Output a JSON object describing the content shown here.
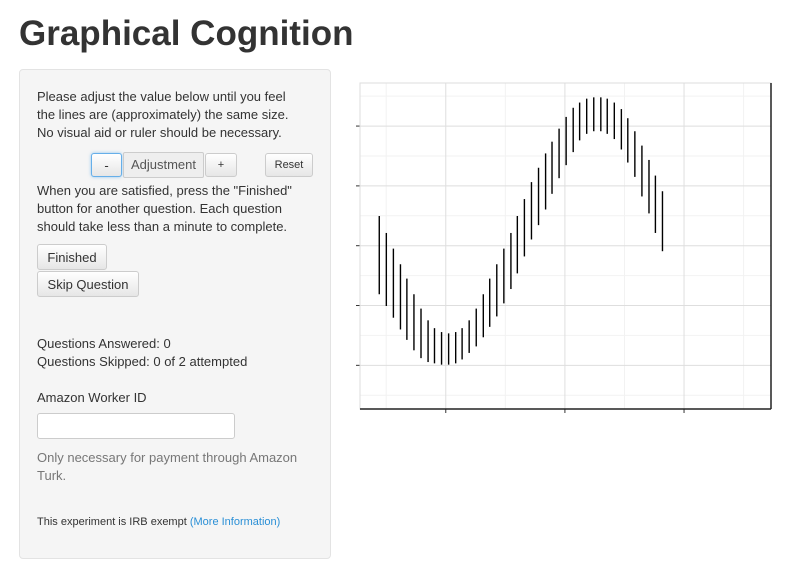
{
  "page": {
    "title": "Graphical Cognition"
  },
  "panel": {
    "instructions": "Please adjust the value below until you feel the lines are (approximately) the same size. No visual aid or ruler should be necessary.",
    "minus_label": "-",
    "adjustment_label": "Adjustment",
    "plus_label": "+",
    "reset_label": "Reset",
    "instructions_2": "When you are satisfied, press the \"Finished\" button for another question. Each question should take less than a minute to complete.",
    "finished_label": "Finished",
    "skip_label": "Skip Question",
    "questions_answered": "Questions Answered: 0",
    "questions_skipped": "Questions Skipped: 0 of 2 attempted",
    "worker_id_label": "Amazon Worker ID",
    "worker_id_value": "",
    "help_text": "Only necessary for payment through Amazon Turk.",
    "irb_text": "This experiment is IRB exempt",
    "irb_link": "(More Information)"
  },
  "chart_data": {
    "type": "line",
    "title": "",
    "xlabel": "",
    "ylabel": "",
    "grid": true,
    "x_tick_count": 3,
    "y_tick_count": 5,
    "xlim": [
      -0.1,
      6.3
    ],
    "ylim": [
      -1.25,
      1.25
    ],
    "segments": [
      {
        "x": 0.2,
        "low": -0.37,
        "high": 0.23
      },
      {
        "x": 0.31,
        "low": -0.46,
        "high": 0.1
      },
      {
        "x": 0.42,
        "low": -0.55,
        "high": -0.02
      },
      {
        "x": 0.53,
        "low": -0.64,
        "high": -0.14
      },
      {
        "x": 0.63,
        "low": -0.72,
        "high": -0.25
      },
      {
        "x": 0.74,
        "low": -0.8,
        "high": -0.37
      },
      {
        "x": 0.85,
        "low": -0.86,
        "high": -0.48
      },
      {
        "x": 0.96,
        "low": -0.89,
        "high": -0.57
      },
      {
        "x": 1.06,
        "low": -0.9,
        "high": -0.63
      },
      {
        "x": 1.17,
        "low": -0.91,
        "high": -0.66
      },
      {
        "x": 1.28,
        "low": -0.91,
        "high": -0.67
      },
      {
        "x": 1.39,
        "low": -0.9,
        "high": -0.66
      },
      {
        "x": 1.49,
        "low": -0.87,
        "high": -0.63
      },
      {
        "x": 1.6,
        "low": -0.82,
        "high": -0.57
      },
      {
        "x": 1.71,
        "low": -0.77,
        "high": -0.48
      },
      {
        "x": 1.82,
        "low": -0.7,
        "high": -0.37
      },
      {
        "x": 1.92,
        "low": -0.62,
        "high": -0.25
      },
      {
        "x": 2.03,
        "low": -0.54,
        "high": -0.14
      },
      {
        "x": 2.14,
        "low": -0.44,
        "high": -0.02
      },
      {
        "x": 2.25,
        "low": -0.33,
        "high": 0.1
      },
      {
        "x": 2.35,
        "low": -0.21,
        "high": 0.23
      },
      {
        "x": 2.46,
        "low": -0.08,
        "high": 0.36
      },
      {
        "x": 2.57,
        "low": 0.05,
        "high": 0.49
      },
      {
        "x": 2.68,
        "low": 0.16,
        "high": 0.6
      },
      {
        "x": 2.79,
        "low": 0.28,
        "high": 0.71
      },
      {
        "x": 2.89,
        "low": 0.4,
        "high": 0.8
      },
      {
        "x": 3.0,
        "low": 0.52,
        "high": 0.9
      },
      {
        "x": 3.11,
        "low": 0.62,
        "high": 0.99
      },
      {
        "x": 3.22,
        "low": 0.72,
        "high": 1.06
      },
      {
        "x": 3.32,
        "low": 0.81,
        "high": 1.1
      },
      {
        "x": 3.43,
        "low": 0.86,
        "high": 1.13
      },
      {
        "x": 3.54,
        "low": 0.88,
        "high": 1.14
      },
      {
        "x": 3.65,
        "low": 0.88,
        "high": 1.14
      },
      {
        "x": 3.75,
        "low": 0.86,
        "high": 1.13
      },
      {
        "x": 3.86,
        "low": 0.82,
        "high": 1.1
      },
      {
        "x": 3.97,
        "low": 0.74,
        "high": 1.05
      },
      {
        "x": 4.07,
        "low": 0.64,
        "high": 0.98
      },
      {
        "x": 4.18,
        "low": 0.53,
        "high": 0.88
      },
      {
        "x": 4.29,
        "low": 0.38,
        "high": 0.77
      },
      {
        "x": 4.4,
        "low": 0.25,
        "high": 0.66
      },
      {
        "x": 4.5,
        "low": 0.1,
        "high": 0.54
      },
      {
        "x": 4.61,
        "low": -0.04,
        "high": 0.42
      }
    ]
  }
}
